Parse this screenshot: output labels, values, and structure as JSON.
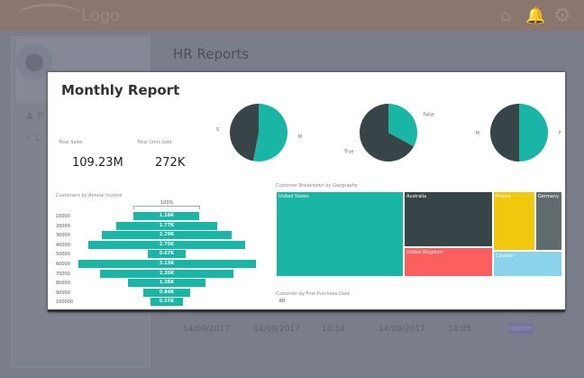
{
  "header": {
    "logo": "Logo",
    "icons": [
      "home-icon",
      "bell-icon",
      "gear-icon"
    ]
  },
  "sidebar": {
    "items": [
      {
        "icon": "user-icon",
        "label": "P"
      },
      {
        "icon": "lightning-icon",
        "label": "L"
      }
    ]
  },
  "page": {
    "title": "HR Reports"
  },
  "background_row": {
    "cells": [
      "14/09/2017",
      "14/09/2017",
      "10:14",
      "14/09/2017",
      "18:05"
    ],
    "button": "Update"
  },
  "modal": {
    "title": "Monthly Report",
    "kpis": [
      {
        "label": "Total Sales",
        "value": "109.23M"
      },
      {
        "label": "Total Units Sold",
        "value": "272K"
      }
    ],
    "pies": [
      {
        "slices": [
          {
            "label": "M",
            "share": 0.53,
            "color": "#19b5a5"
          },
          {
            "label": "S",
            "share": 0.47,
            "color": "#374548"
          }
        ]
      },
      {
        "slices": [
          {
            "label": "False",
            "share": 0.33,
            "color": "#19b5a5"
          },
          {
            "label": "True",
            "share": 0.67,
            "color": "#374548"
          }
        ]
      },
      {
        "slices": [
          {
            "label": "F",
            "share": 0.5,
            "color": "#19b5a5"
          },
          {
            "label": "M",
            "share": 0.5,
            "color": "#374548"
          }
        ]
      }
    ],
    "funnel": {
      "title": "Customers by Annual Income",
      "top_label": "100%",
      "categories": [
        "10000",
        "20000",
        "30000",
        "40000",
        "50000",
        "60000",
        "70000",
        "80000",
        "90000",
        "100000"
      ],
      "values": [
        1.16,
        1.77,
        2.29,
        2.75,
        0.67,
        3.13,
        2.35,
        1.36,
        0.84,
        0.57
      ],
      "labels": [
        "1.16K",
        "1.77K",
        "2.29K",
        "2.75K",
        "0.67K",
        "3.13K",
        "2.35K",
        "1.36K",
        "0.84K",
        "0.57K"
      ]
    },
    "treemap": {
      "title": "Customer Breakdown by Geography",
      "items": [
        {
          "label": "United States",
          "color": "#19b5a5"
        },
        {
          "label": "Australia",
          "color": "#374548"
        },
        {
          "label": "United Kingdom",
          "color": "#fc5f5f"
        },
        {
          "label": "France",
          "color": "#f2c80f"
        },
        {
          "label": "Germany",
          "color": "#5f6b6d"
        },
        {
          "label": "Canada",
          "color": "#8ad4eb"
        }
      ]
    },
    "purchase_date": {
      "title": "Customer by First Purchase Date",
      "value": "60"
    }
  }
}
